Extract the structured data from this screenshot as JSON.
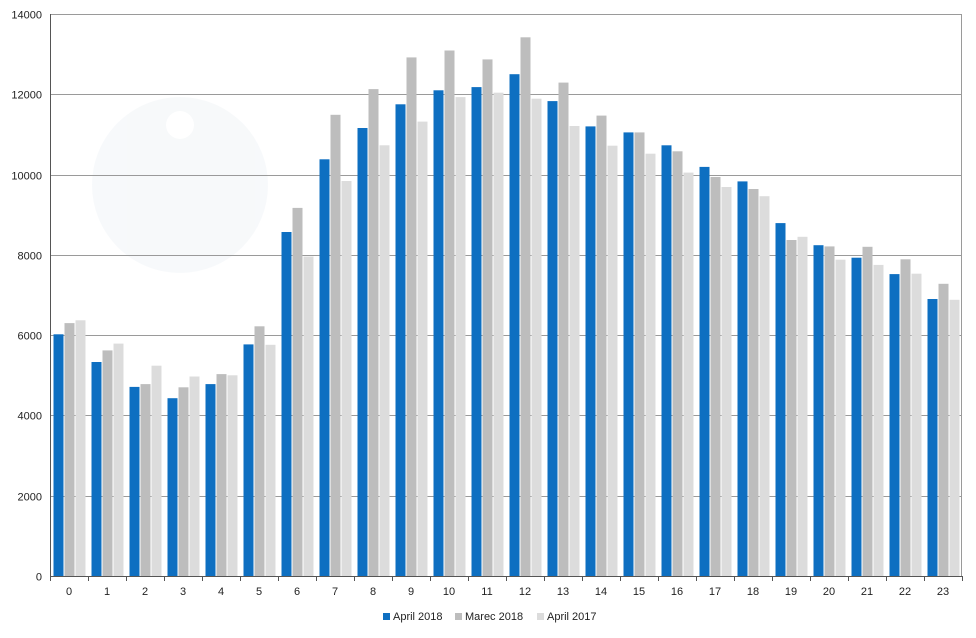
{
  "chart_data": {
    "type": "bar",
    "categories": [
      "0",
      "1",
      "2",
      "3",
      "4",
      "5",
      "6",
      "7",
      "8",
      "9",
      "10",
      "11",
      "12",
      "13",
      "14",
      "15",
      "16",
      "17",
      "18",
      "19",
      "20",
      "21",
      "22",
      "23"
    ],
    "series": [
      {
        "name": "April 2018",
        "color": "#0e6fc1",
        "values": [
          6020,
          5330,
          4710,
          4430,
          4780,
          5770,
          8570,
          10380,
          11160,
          11750,
          12100,
          12180,
          12500,
          11830,
          11200,
          11050,
          10730,
          10190,
          9830,
          8790,
          8240,
          7930,
          7520,
          6900
        ]
      },
      {
        "name": "Marec 2018",
        "color": "#bdbdbd",
        "values": [
          6300,
          5620,
          4780,
          4700,
          5030,
          6220,
          9170,
          11490,
          12130,
          12920,
          13090,
          12870,
          13420,
          12290,
          11470,
          11050,
          10580,
          9940,
          9640,
          8370,
          8210,
          8200,
          7890,
          7280
        ]
      },
      {
        "name": "April 2017",
        "color": "#dcdcdc",
        "values": [
          6370,
          5790,
          5240,
          4970,
          5000,
          5760,
          7960,
          9840,
          10730,
          11320,
          11930,
          12040,
          11890,
          11210,
          10720,
          10520,
          10050,
          9690,
          9460,
          8450,
          7880,
          7750,
          7530,
          6880
        ]
      }
    ],
    "title": "",
    "xlabel": "",
    "ylabel": "",
    "ylim": [
      0,
      14000
    ],
    "yticks": [
      0,
      2000,
      4000,
      6000,
      8000,
      10000,
      12000,
      14000
    ],
    "grid": true,
    "legend_position": "bottom-center"
  }
}
